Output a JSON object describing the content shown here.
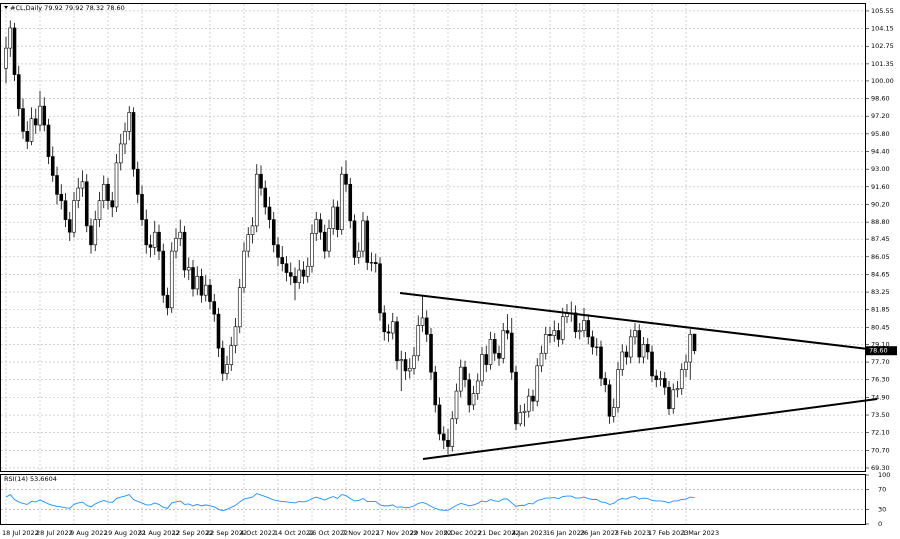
{
  "chart_data": {
    "type": "candlestick",
    "title": "#CL,Daily 79.92 79.92 78.32 78.60",
    "categories": [
      "18 Jul 2022",
      null,
      null,
      null,
      null,
      null,
      null,
      null,
      "28 Jul 2022",
      null,
      null,
      null,
      null,
      null,
      null,
      null,
      "9 Aug 2022",
      null,
      null,
      null,
      null,
      null,
      null,
      null,
      "19 Aug 2022",
      null,
      null,
      null,
      null,
      null,
      null,
      null,
      "31 Aug 2022",
      null,
      null,
      null,
      null,
      null,
      null,
      null,
      "12 Sep 2022",
      null,
      null,
      null,
      null,
      null,
      null,
      null,
      "22 Sep 2022",
      null,
      null,
      null,
      null,
      null,
      null,
      null,
      "4 Oct 2022",
      null,
      null,
      null,
      null,
      null,
      null,
      null,
      "14 Oct 2022",
      null,
      null,
      null,
      null,
      null,
      null,
      null,
      "26 Oct 2022",
      null,
      null,
      null,
      null,
      null,
      null,
      null,
      "7 Nov 2022",
      null,
      null,
      null,
      null,
      null,
      null,
      null,
      "17 Nov 2022",
      null,
      null,
      null,
      null,
      null,
      null,
      null,
      "29 Nov 2022",
      null,
      null,
      null,
      null,
      null,
      null,
      null,
      "9 Dec 2022",
      null,
      null,
      null,
      null,
      null,
      null,
      null,
      "21 Dec 2022",
      null,
      null,
      null,
      null,
      null,
      null,
      null,
      "4 Jan 2023",
      null,
      null,
      null,
      null,
      null,
      null,
      null,
      "16 Jan 2023",
      null,
      null,
      null,
      null,
      null,
      null,
      null,
      "26 Jan 2023",
      null,
      null,
      null,
      null,
      null,
      null,
      null,
      "7 Feb 2023",
      null,
      null,
      null,
      null,
      null,
      null,
      null,
      "17 Feb 2023",
      null,
      null,
      null,
      null,
      null,
      null,
      null,
      "1 Mar 2023",
      null,
      null
    ],
    "ohlc": [
      [
        101.0,
        103.5,
        99.8,
        102.6
      ],
      [
        102.6,
        104.8,
        101.9,
        104.2
      ],
      [
        104.2,
        104.6,
        100.0,
        100.5
      ],
      [
        100.5,
        101.2,
        97.2,
        97.8
      ],
      [
        97.8,
        98.6,
        95.4,
        96.0
      ],
      [
        96.0,
        96.8,
        94.6,
        95.2
      ],
      [
        95.2,
        97.9,
        94.9,
        97.0
      ],
      [
        97.0,
        97.8,
        95.8,
        96.5
      ],
      [
        96.5,
        99.2,
        96.0,
        98.0
      ],
      [
        98.0,
        98.7,
        96.0,
        96.5
      ],
      [
        96.5,
        97.0,
        93.4,
        94.0
      ],
      [
        94.0,
        94.8,
        92.0,
        92.5
      ],
      [
        92.5,
        93.2,
        90.2,
        91.0
      ],
      [
        91.0,
        91.8,
        89.8,
        90.5
      ],
      [
        90.5,
        91.1,
        88.4,
        89.0
      ],
      [
        89.0,
        89.6,
        87.3,
        88.0
      ],
      [
        88.0,
        91.2,
        87.6,
        90.5
      ],
      [
        90.5,
        92.3,
        89.9,
        91.5
      ],
      [
        91.5,
        92.9,
        90.8,
        92.0
      ],
      [
        92.0,
        92.6,
        88.0,
        88.5
      ],
      [
        88.5,
        89.1,
        86.3,
        87.0
      ],
      [
        87.0,
        89.7,
        86.5,
        89.0
      ],
      [
        89.0,
        91.2,
        88.4,
        90.5
      ],
      [
        90.5,
        92.5,
        89.9,
        91.8
      ],
      [
        91.8,
        92.3,
        89.8,
        90.5
      ],
      [
        90.5,
        91.2,
        89.2,
        90.0
      ],
      [
        90.0,
        94.2,
        89.6,
        93.5
      ],
      [
        93.5,
        95.8,
        92.9,
        95.0
      ],
      [
        95.0,
        96.7,
        94.2,
        96.0
      ],
      [
        96.0,
        98.0,
        95.3,
        97.5
      ],
      [
        97.5,
        97.9,
        92.4,
        93.0
      ],
      [
        93.0,
        93.6,
        90.3,
        91.0
      ],
      [
        91.0,
        91.7,
        88.5,
        89.0
      ],
      [
        89.0,
        89.8,
        86.3,
        87.0
      ],
      [
        87.0,
        87.8,
        86.0,
        86.8
      ],
      [
        86.8,
        88.9,
        86.2,
        88.0
      ],
      [
        88.0,
        88.6,
        85.8,
        86.5
      ],
      [
        86.5,
        87.1,
        82.4,
        83.0
      ],
      [
        83.0,
        83.6,
        81.4,
        82.0
      ],
      [
        82.0,
        87.2,
        81.6,
        86.5
      ],
      [
        86.5,
        88.3,
        85.9,
        87.5
      ],
      [
        87.5,
        89.0,
        86.9,
        88.0
      ],
      [
        88.0,
        88.5,
        84.4,
        85.0
      ],
      [
        85.0,
        86.0,
        84.2,
        85.2
      ],
      [
        85.2,
        85.8,
        82.9,
        83.5
      ],
      [
        83.5,
        85.3,
        83.0,
        84.5
      ],
      [
        84.5,
        85.1,
        82.4,
        83.0
      ],
      [
        83.0,
        84.6,
        82.5,
        83.8
      ],
      [
        83.8,
        84.3,
        81.9,
        82.5
      ],
      [
        82.5,
        83.1,
        80.9,
        81.5
      ],
      [
        81.5,
        82.0,
        78.1,
        78.8
      ],
      [
        78.8,
        79.4,
        76.2,
        76.8
      ],
      [
        76.8,
        78.2,
        76.3,
        77.5
      ],
      [
        77.5,
        79.7,
        77.0,
        79.0
      ],
      [
        79.0,
        81.2,
        78.4,
        80.5
      ],
      [
        80.5,
        84.3,
        80.0,
        83.6
      ],
      [
        83.6,
        87.2,
        83.2,
        86.5
      ],
      [
        86.5,
        88.4,
        86.0,
        87.8
      ],
      [
        87.8,
        89.2,
        87.1,
        88.5
      ],
      [
        88.5,
        93.4,
        88.0,
        92.6
      ],
      [
        92.6,
        93.3,
        90.9,
        91.5
      ],
      [
        91.5,
        92.1,
        89.4,
        90.0
      ],
      [
        90.0,
        90.8,
        88.3,
        89.0
      ],
      [
        89.0,
        89.6,
        86.4,
        87.0
      ],
      [
        87.0,
        87.6,
        85.3,
        86.0
      ],
      [
        86.0,
        86.9,
        84.9,
        85.5
      ],
      [
        85.5,
        86.1,
        84.1,
        84.8
      ],
      [
        84.8,
        85.6,
        83.8,
        84.5
      ],
      [
        84.5,
        85.2,
        82.6,
        84.0
      ],
      [
        84.0,
        85.8,
        83.5,
        85.0
      ],
      [
        85.0,
        85.7,
        83.9,
        84.5
      ],
      [
        84.5,
        86.0,
        84.0,
        85.3
      ],
      [
        85.3,
        88.6,
        84.8,
        87.9
      ],
      [
        87.9,
        89.6,
        87.3,
        89.0
      ],
      [
        89.0,
        89.5,
        87.4,
        88.0
      ],
      [
        88.0,
        88.6,
        85.9,
        86.5
      ],
      [
        86.5,
        89.0,
        86.0,
        88.3
      ],
      [
        88.3,
        90.6,
        87.8,
        90.0
      ],
      [
        90.0,
        90.5,
        87.6,
        88.2
      ],
      [
        88.2,
        93.2,
        87.8,
        92.6
      ],
      [
        92.6,
        93.7,
        91.2,
        91.8
      ],
      [
        91.8,
        92.3,
        88.3,
        88.9
      ],
      [
        88.9,
        89.4,
        85.4,
        86.0
      ],
      [
        86.0,
        87.2,
        85.5,
        86.5
      ],
      [
        86.5,
        89.6,
        86.0,
        88.9
      ],
      [
        88.9,
        89.3,
        85.0,
        85.6
      ],
      [
        85.6,
        86.4,
        84.9,
        85.6
      ],
      [
        85.6,
        86.3,
        84.8,
        85.5
      ],
      [
        85.5,
        86.0,
        81.0,
        81.6
      ],
      [
        81.6,
        82.2,
        79.4,
        80.1
      ],
      [
        80.1,
        80.7,
        79.3,
        80.0
      ],
      [
        80.0,
        81.6,
        79.5,
        80.9
      ],
      [
        80.9,
        81.3,
        77.1,
        77.8
      ],
      [
        77.8,
        78.6,
        75.4,
        77.9
      ],
      [
        77.9,
        78.5,
        76.3,
        77.0
      ],
      [
        77.0,
        78.0,
        76.4,
        77.2
      ],
      [
        77.2,
        78.9,
        76.7,
        78.2
      ],
      [
        78.2,
        81.4,
        77.8,
        80.6
      ],
      [
        80.6,
        83.0,
        80.1,
        81.2
      ],
      [
        81.2,
        81.8,
        79.3,
        79.9
      ],
      [
        79.9,
        80.4,
        76.3,
        76.9
      ],
      [
        76.9,
        77.4,
        73.7,
        74.3
      ],
      [
        74.3,
        74.9,
        71.5,
        72.0
      ],
      [
        72.0,
        72.6,
        70.8,
        71.5
      ],
      [
        71.5,
        72.4,
        70.4,
        71.0
      ],
      [
        71.0,
        73.8,
        70.6,
        73.2
      ],
      [
        73.2,
        76.0,
        72.8,
        75.4
      ],
      [
        75.4,
        77.9,
        74.9,
        77.3
      ],
      [
        77.3,
        77.8,
        75.7,
        76.3
      ],
      [
        76.3,
        76.8,
        73.7,
        74.3
      ],
      [
        74.3,
        75.8,
        73.9,
        75.2
      ],
      [
        75.2,
        76.8,
        74.7,
        76.2
      ],
      [
        76.2,
        78.9,
        75.8,
        78.3
      ],
      [
        78.3,
        79.0,
        76.9,
        77.5
      ],
      [
        77.5,
        80.1,
        77.1,
        79.5
      ],
      [
        79.5,
        80.0,
        77.8,
        78.4
      ],
      [
        78.4,
        79.0,
        77.4,
        78.0
      ],
      [
        78.0,
        80.8,
        77.6,
        80.2
      ],
      [
        80.2,
        81.5,
        79.5,
        80.0
      ],
      [
        80.0,
        81.2,
        76.3,
        76.9
      ],
      [
        76.9,
        77.4,
        72.3,
        72.8
      ],
      [
        72.8,
        74.3,
        72.6,
        73.7
      ],
      [
        73.7,
        74.4,
        72.6,
        73.8
      ],
      [
        73.8,
        75.6,
        73.3,
        75.0
      ],
      [
        75.0,
        75.5,
        73.8,
        74.6
      ],
      [
        74.6,
        78.0,
        74.2,
        77.4
      ],
      [
        77.4,
        79.0,
        76.9,
        78.4
      ],
      [
        78.4,
        80.5,
        77.9,
        79.9
      ],
      [
        79.9,
        80.5,
        79.2,
        79.8
      ],
      [
        79.8,
        81.0,
        79.3,
        80.2
      ],
      [
        80.2,
        80.8,
        78.9,
        79.5
      ],
      [
        79.5,
        82.0,
        79.1,
        81.3
      ],
      [
        81.3,
        82.3,
        80.8,
        81.6
      ],
      [
        81.6,
        82.5,
        80.9,
        81.6
      ],
      [
        81.6,
        82.2,
        79.6,
        80.1
      ],
      [
        80.1,
        80.8,
        79.5,
        80.2
      ],
      [
        80.2,
        82.0,
        79.7,
        81.0
      ],
      [
        81.0,
        81.5,
        79.1,
        79.7
      ],
      [
        79.7,
        80.2,
        78.3,
        78.9
      ],
      [
        78.9,
        79.6,
        78.2,
        78.9
      ],
      [
        78.9,
        79.4,
        75.8,
        76.4
      ],
      [
        76.4,
        76.9,
        75.3,
        75.9
      ],
      [
        75.9,
        76.3,
        72.8,
        73.4
      ],
      [
        73.4,
        74.8,
        72.9,
        74.1
      ],
      [
        74.1,
        77.7,
        73.7,
        77.1
      ],
      [
        77.1,
        79.1,
        76.6,
        78.5
      ],
      [
        78.5,
        79.0,
        77.5,
        78.1
      ],
      [
        78.1,
        80.3,
        77.6,
        79.7
      ],
      [
        79.7,
        80.8,
        79.1,
        80.2
      ],
      [
        80.2,
        80.7,
        77.6,
        78.1
      ],
      [
        78.1,
        79.7,
        77.6,
        79.1
      ],
      [
        79.1,
        79.6,
        77.9,
        78.5
      ],
      [
        78.5,
        79.0,
        76.1,
        76.6
      ],
      [
        76.6,
        77.1,
        75.7,
        76.3
      ],
      [
        76.3,
        77.0,
        75.8,
        76.4
      ],
      [
        76.4,
        76.9,
        75.1,
        75.7
      ],
      [
        75.7,
        76.2,
        73.5,
        74.0
      ],
      [
        74.0,
        76.0,
        73.6,
        75.5
      ],
      [
        75.5,
        76.2,
        74.9,
        75.6
      ],
      [
        75.6,
        77.6,
        75.1,
        77.1
      ],
      [
        77.1,
        78.3,
        76.5,
        77.7
      ],
      [
        77.7,
        80.3,
        76.3,
        79.9
      ],
      [
        79.92,
        79.92,
        78.32,
        78.6
      ]
    ],
    "up_color": "#ffffff",
    "down_color": "#000000",
    "ylim": [
      69.06,
      106.1
    ],
    "yticks": [
      {
        "value": 69.3,
        "label": "69.30"
      },
      {
        "value": 70.7,
        "label": "70.70"
      },
      {
        "value": 72.1,
        "label": "72.10"
      },
      {
        "value": 73.5,
        "label": "73.50"
      },
      {
        "value": 74.9,
        "label": "74.90"
      },
      {
        "value": 76.3,
        "label": "76.30"
      },
      {
        "value": 77.7,
        "label": "77.70"
      },
      {
        "value": 79.1,
        "label": "79.10"
      },
      80.45,
      81.85,
      83.25,
      84.65,
      86.05,
      87.45,
      {
        "value": 88.8,
        "label": "88.80"
      },
      {
        "value": 90.2,
        "label": "90.20"
      },
      {
        "value": 91.6,
        "label": "91.60"
      },
      {
        "value": 93,
        "label": "93.00"
      },
      {
        "value": 94.4,
        "label": "94.40"
      },
      {
        "value": 95.8,
        "label": "95.80"
      },
      {
        "value": 97.2,
        "label": "97.20"
      },
      {
        "value": 98.6,
        "label": "98.60"
      },
      {
        "value": 100,
        "label": "100.00"
      },
      101.35,
      102.75,
      104.15,
      105.55
    ],
    "grid": true,
    "last_price": {
      "value": 78.6,
      "label": "78.60"
    },
    "indicator": {
      "type": "line",
      "title": "RSI(14) 53.6604",
      "color": "#1e90ff",
      "ylim": [
        0,
        100
      ],
      "yticks": [
        0,
        30,
        70,
        100
      ],
      "levels": [
        30,
        70
      ],
      "values": [
        55,
        60,
        50,
        45,
        42,
        40,
        46,
        45,
        49,
        45,
        41,
        38,
        36,
        35,
        33,
        32,
        40,
        43,
        45,
        38,
        35,
        41,
        45,
        48,
        45,
        44,
        52,
        55,
        57,
        60,
        50,
        46,
        43,
        39,
        39,
        43,
        40,
        34,
        32,
        43,
        45,
        47,
        40,
        41,
        37,
        40,
        37,
        39,
        37,
        35,
        30,
        27,
        30,
        34,
        38,
        45,
        51,
        53,
        55,
        62,
        59,
        56,
        53,
        49,
        47,
        46,
        45,
        44,
        43,
        46,
        45,
        47,
        52,
        55,
        52,
        49,
        53,
        56,
        52,
        60,
        58,
        52,
        47,
        48,
        52,
        46,
        46,
        46,
        39,
        37,
        37,
        39,
        34,
        35,
        33,
        34,
        37,
        42,
        44,
        41,
        36,
        32,
        29,
        28,
        28,
        33,
        38,
        42,
        40,
        37,
        39,
        42,
        47,
        45,
        50,
        47,
        46,
        51,
        51,
        43,
        36,
        38,
        38,
        42,
        41,
        48,
        50,
        53,
        53,
        54,
        52,
        56,
        57,
        57,
        53,
        53,
        55,
        52,
        50,
        50,
        45,
        44,
        40,
        42,
        49,
        52,
        51,
        55,
        56,
        51,
        53,
        52,
        48,
        47,
        47,
        46,
        43,
        47,
        47,
        50,
        51,
        55,
        53.6604
      ]
    }
  }
}
